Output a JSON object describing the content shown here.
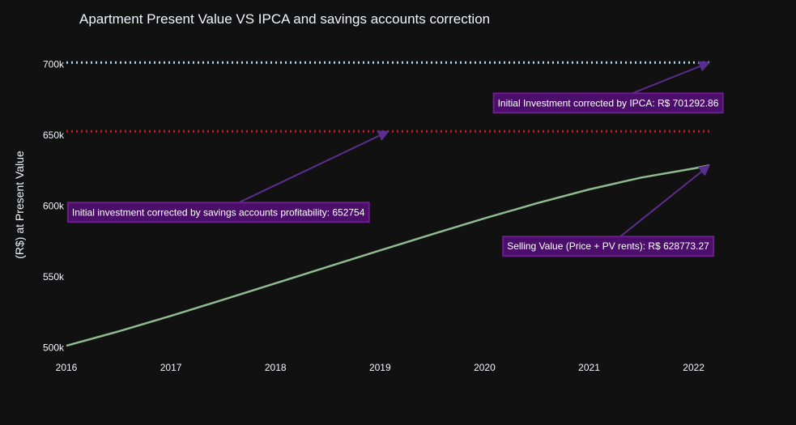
{
  "chart_data": {
    "type": "line",
    "title": "Apartment Present Value VS IPCA and savings accounts correction",
    "xlabel": "",
    "ylabel": "(R$) at Present Value",
    "xlim": [
      2016,
      2022.15
    ],
    "ylim": [
      497000,
      714000
    ],
    "x_ticks": [
      "2016",
      "2017",
      "2018",
      "2019",
      "2020",
      "2021",
      "2022"
    ],
    "y_ticks": [
      {
        "value": 500000,
        "label": "500k"
      },
      {
        "value": 550000,
        "label": "550k"
      },
      {
        "value": 600000,
        "label": "600k"
      },
      {
        "value": 650000,
        "label": "650k"
      },
      {
        "value": 700000,
        "label": "700k"
      }
    ],
    "grid": false,
    "series": [
      {
        "color": "#8fbc8f",
        "style": "solid",
        "x": [
          2016,
          2016.5,
          2017,
          2017.5,
          2018,
          2018.5,
          2019,
          2019.5,
          2020,
          2020.5,
          2021,
          2021.5,
          2022,
          2022.15
        ],
        "y": [
          501500,
          511700,
          522600,
          534000,
          545600,
          557200,
          568800,
          580200,
          591400,
          602000,
          611800,
          620200,
          626600,
          628773.27
        ]
      },
      {
        "color": "#e0111d",
        "style": "dotted",
        "x": [
          2016,
          2022.15
        ],
        "y": [
          652754,
          652754
        ]
      },
      {
        "color": "#add8e6",
        "style": "dotted",
        "x": [
          2016,
          2022.15
        ],
        "y": [
          701292.86,
          701292.86
        ]
      }
    ],
    "annotations": [
      {
        "text": "Initial Investment corrected by IPCA: R$ 701292.86",
        "x": 2022.15,
        "y": 701292.86
      },
      {
        "text": "Initial investment corrected by savings accounts profitability: 652754",
        "x": 2019.08,
        "y": 652754
      },
      {
        "text": "Selling Value (Price + PV rents): R$ 628773.27",
        "x": 2022.15,
        "y": 628773.27
      }
    ],
    "annotation_style": {
      "fill": "#4b0f6b",
      "border": "#6c1d8e",
      "arrow": "#5b2d8e"
    }
  }
}
